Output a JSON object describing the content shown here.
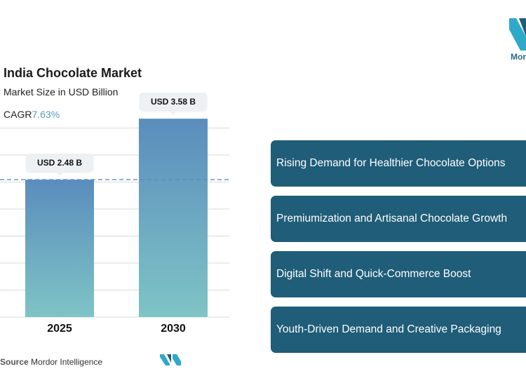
{
  "header": {
    "title": "India Chocolate Market",
    "subtitle": "Market Size in USD Billion",
    "cagr_label": "CAGR",
    "cagr_value": "7.63%"
  },
  "chart_data": {
    "type": "bar",
    "categories": [
      "2025",
      "2030"
    ],
    "values": [
      2.48,
      3.58
    ],
    "data_labels": [
      "USD 2.48 B",
      "USD 3.58 B"
    ],
    "reference_line": 2.48,
    "grid": true,
    "colors": {
      "bar_top": "#5a8dbd",
      "bar_bottom": "#7fc4c6",
      "reference_line": "#5a8dbd",
      "grid": "#d9d9d9"
    }
  },
  "drivers": [
    "Rising Demand for Healthier Chocolate Options",
    "Premiumization and Artisanal Chocolate Growth",
    "Digital Shift and Quick-Commerce Boost",
    "Youth-Driven Demand and Creative Packaging"
  ],
  "footer": {
    "source_label": "Source",
    "source_name": "Mordor Intelligence"
  },
  "logo": {
    "text": "Mor"
  },
  "colors": {
    "driver_bg": "#1f5d78",
    "accent": "#5b9bb5"
  }
}
